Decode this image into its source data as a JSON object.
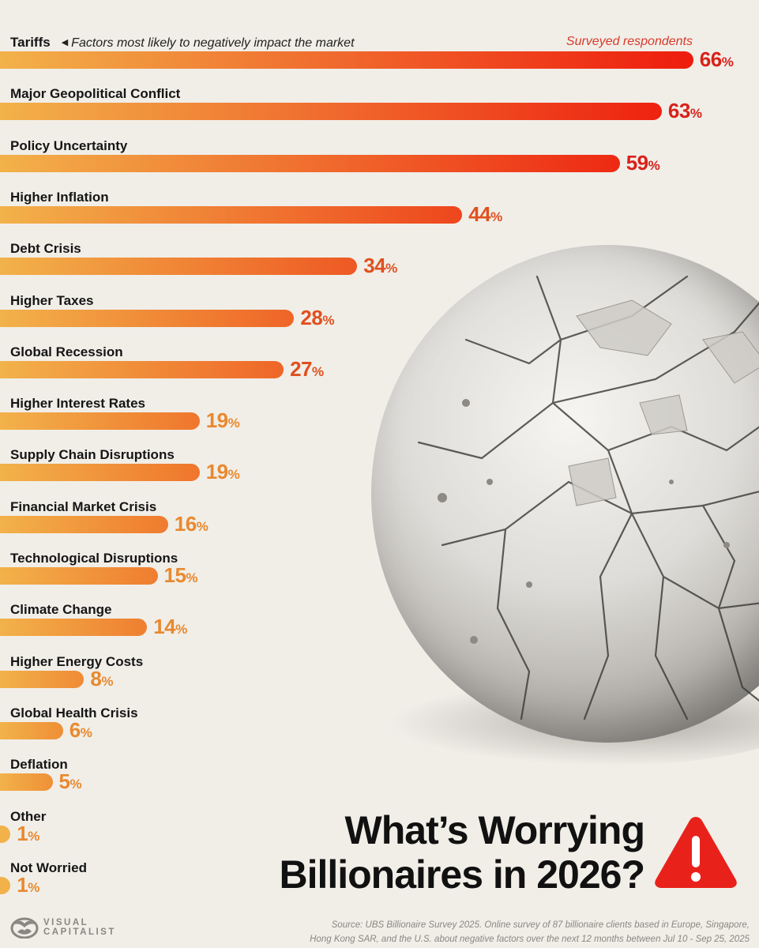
{
  "chart_data": {
    "type": "bar",
    "orientation": "horizontal",
    "title": "What’s Worrying Billionaires in 2026?",
    "subtitle": "Factors most likely to negatively impact the market",
    "series_label": "Surveyed respondents",
    "unit": "%",
    "categories": [
      "Tariffs",
      "Major Geopolitical Conflict",
      "Policy Uncertainty",
      "Higher Inflation",
      "Debt Crisis",
      "Higher Taxes",
      "Global Recession",
      "Higher Interest Rates",
      "Supply Chain Disruptions",
      "Financial Market Crisis",
      "Technological Disruptions",
      "Climate Change",
      "Higher Energy Costs",
      "Global Health Crisis",
      "Deflation",
      "Other",
      "Not Worried"
    ],
    "values": [
      66,
      63,
      59,
      44,
      34,
      28,
      27,
      19,
      19,
      16,
      15,
      14,
      8,
      6,
      5,
      1,
      1
    ],
    "xlim": [
      0,
      66
    ],
    "grid": false,
    "legend": "none"
  },
  "header": {
    "subtitle_note": "Factors most likely to negatively impact the market",
    "series_label": "Surveyed respondents"
  },
  "rows": [
    {
      "label": "Tariffs",
      "value": "66",
      "pct": "%"
    },
    {
      "label": "Major Geopolitical Conflict",
      "value": "63",
      "pct": "%"
    },
    {
      "label": "Policy Uncertainty",
      "value": "59",
      "pct": "%"
    },
    {
      "label": "Higher Inflation",
      "value": "44",
      "pct": "%"
    },
    {
      "label": "Debt Crisis",
      "value": "34",
      "pct": "%"
    },
    {
      "label": "Higher Taxes",
      "value": "28",
      "pct": "%"
    },
    {
      "label": "Global Recession",
      "value": "27",
      "pct": "%"
    },
    {
      "label": "Higher Interest Rates",
      "value": "19",
      "pct": "%"
    },
    {
      "label": "Supply Chain Disruptions",
      "value": "19",
      "pct": "%"
    },
    {
      "label": "Financial Market Crisis",
      "value": "16",
      "pct": "%"
    },
    {
      "label": "Technological Disruptions",
      "value": "15",
      "pct": "%"
    },
    {
      "label": "Climate Change",
      "value": "14",
      "pct": "%"
    },
    {
      "label": "Higher Energy Costs",
      "value": "8",
      "pct": "%"
    },
    {
      "label": "Global Health Crisis",
      "value": "6",
      "pct": "%"
    },
    {
      "label": "Deflation",
      "value": "5",
      "pct": "%"
    },
    {
      "label": "Other",
      "value": "1",
      "pct": "%"
    },
    {
      "label": "Not Worried",
      "value": "1",
      "pct": "%"
    }
  ],
  "title": {
    "line1": "What’s Worrying",
    "line2": "Billionaires in 2026?"
  },
  "colors": {
    "bar_start": "#f2b24a",
    "bar_end_high": "#ee1c0e",
    "bar_end_low": "#ef9a3a",
    "warning": "#e8221b",
    "background": "#f1eee8"
  },
  "footer": {
    "logo_line1": "VISUAL",
    "logo_line2": "CAPITALIST",
    "source_line1": "Source: UBS Billionaire Survey 2025. Online survey of 87 billionaire clients based in Europe, Singapore,",
    "source_line2": "Hong Kong SAR, and the U.S. about negative factors over the next 12 months between Jul 10 - Sep 25, 2025"
  }
}
